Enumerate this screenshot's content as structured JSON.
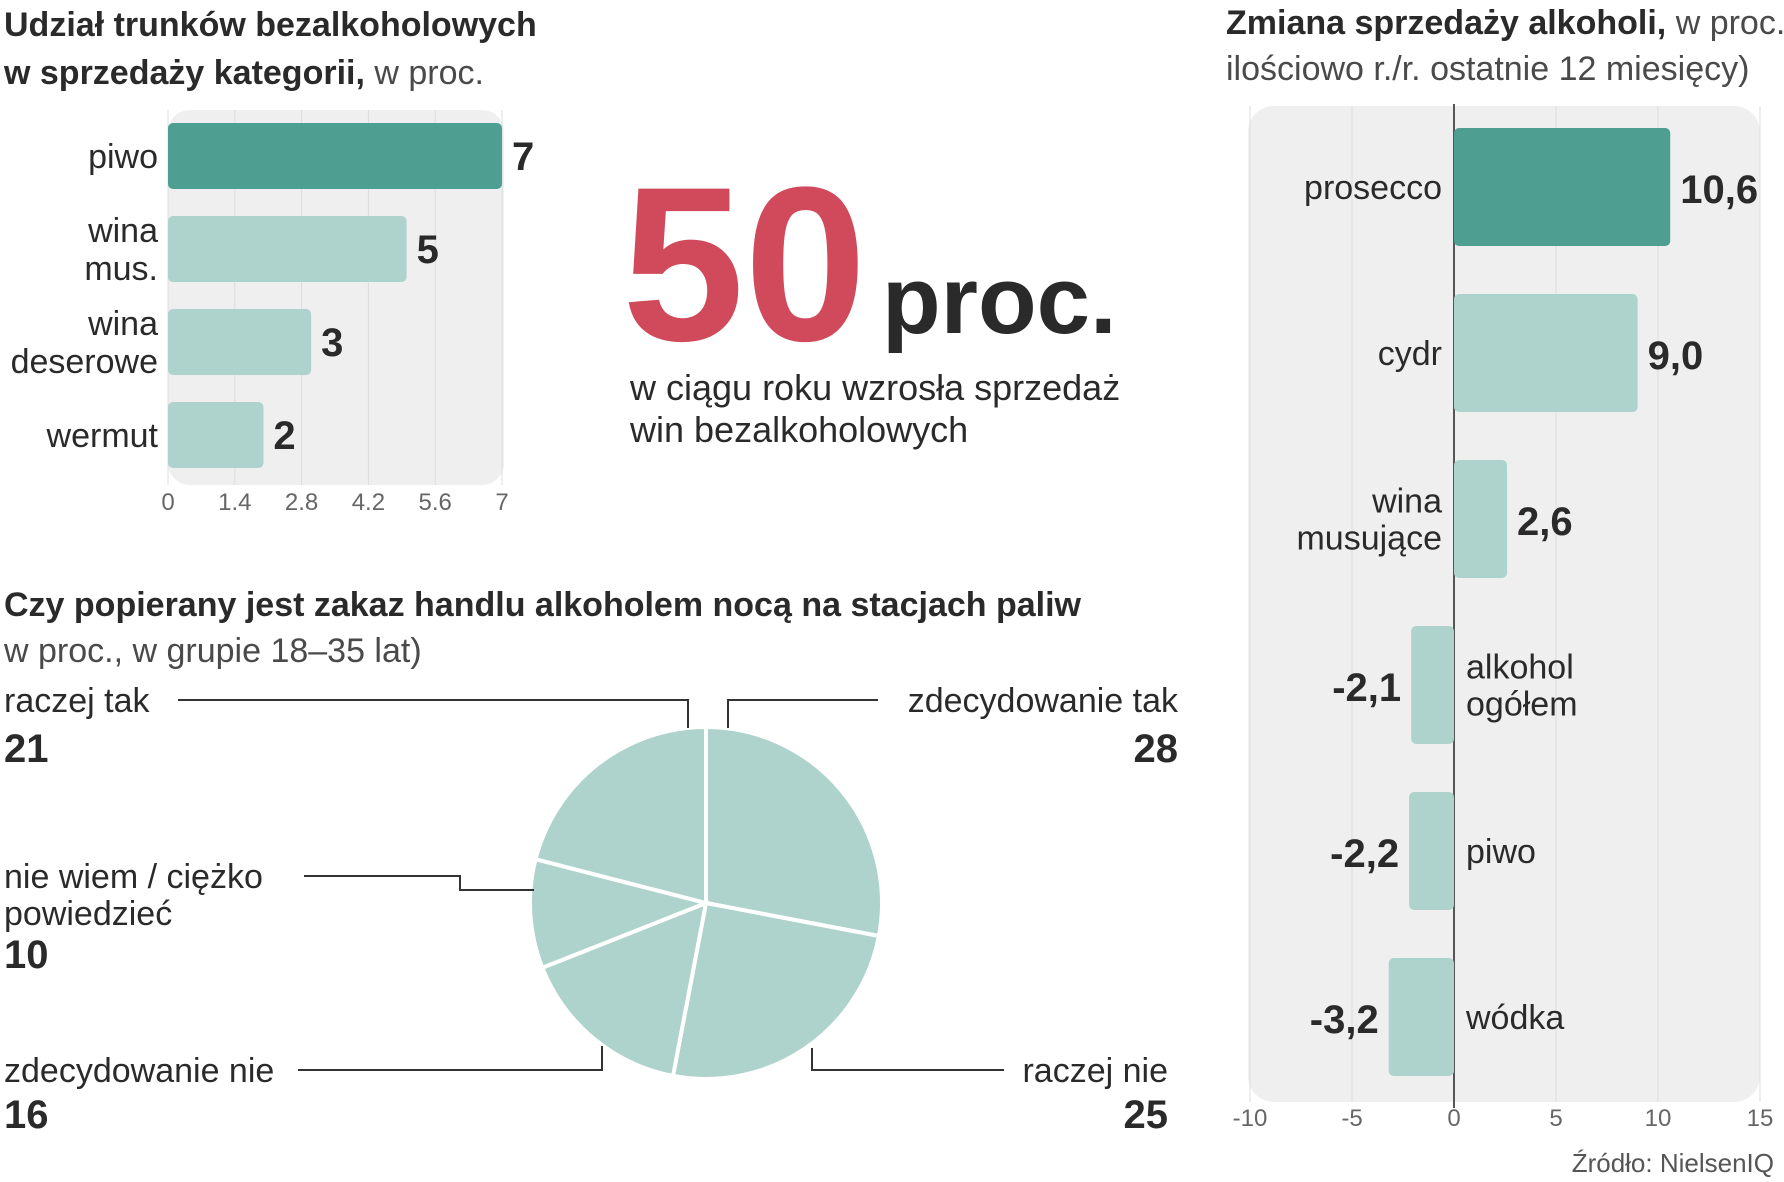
{
  "colors": {
    "accent": "#4e9e92",
    "light": "#aed2cc",
    "panel": "#efefef",
    "big": "#d04a5c",
    "text": "#2a2a2a"
  },
  "bar1": {
    "title_line1": "Udział trunków bezalkoholowych",
    "title_line2_bold": "w sprzedaży kategorii,",
    "title_line2_rest": " w proc.",
    "chart_data": {
      "type": "bar",
      "orientation": "horizontal",
      "categories": [
        "piwo",
        "wina mus.",
        "wina deserowe",
        "wermut"
      ],
      "category_lines": [
        [
          "piwo"
        ],
        [
          "wina",
          "mus."
        ],
        [
          "wina",
          "deserowe"
        ],
        [
          "wermut"
        ]
      ],
      "values": [
        7,
        5,
        3,
        2
      ],
      "value_labels": [
        "7",
        "5",
        "3",
        "2"
      ],
      "xlim": [
        0,
        7
      ],
      "ticks": [
        "0",
        "1.4",
        "2.8",
        "4.2",
        "5.6",
        "7"
      ],
      "highlight_index": 0
    }
  },
  "callout": {
    "number": "50",
    "unit": "proc.",
    "line1": "w ciągu roku wzrosła sprzedaż",
    "line2": "win bezalkoholowych"
  },
  "pie": {
    "title": "Czy popierany jest zakaz handlu alkoholem nocą na stacjach paliw",
    "subtitle": "w proc., w grupie 18–35 lat)",
    "chart_data": {
      "type": "pie",
      "slices": [
        {
          "label_lines": [
            "zdecydowanie tak"
          ],
          "value": 28,
          "value_label": "28"
        },
        {
          "label_lines": [
            "raczej nie"
          ],
          "value": 25,
          "value_label": "25"
        },
        {
          "label_lines": [
            "zdecydowanie nie"
          ],
          "value": 16,
          "value_label": "16"
        },
        {
          "label_lines": [
            "nie wiem / ciężko",
            "powiedzieć"
          ],
          "value": 10,
          "value_label": "10"
        },
        {
          "label_lines": [
            "raczej tak"
          ],
          "value": 21,
          "value_label": "21"
        }
      ]
    }
  },
  "bar2": {
    "title_bold": "Zmiana sprzedaży alkoholi,",
    "title_rest": " w proc.",
    "subtitle": "ilościowo r./r. ostatnie 12 miesięcy)",
    "chart_data": {
      "type": "bar",
      "orientation": "horizontal",
      "categories": [
        "prosecco",
        "cydr",
        "wina musujące",
        "alkohol ogółem",
        "piwo",
        "wódka"
      ],
      "category_lines": [
        [
          "prosecco"
        ],
        [
          "cydr"
        ],
        [
          "wina",
          "musujące"
        ],
        [
          "alkohol",
          "ogółem"
        ],
        [
          "piwo"
        ],
        [
          "wódka"
        ]
      ],
      "values": [
        10.6,
        9.0,
        2.6,
        -2.1,
        -2.2,
        -3.2
      ],
      "value_labels": [
        "10,6",
        "9,0",
        "2,6",
        "-2,1",
        "-2,2",
        "-3,2"
      ],
      "xlim": [
        -10,
        15
      ],
      "ticks": [
        "-10",
        "-5",
        "0",
        "5",
        "10",
        "15"
      ],
      "highlight_index": 0
    }
  },
  "source": "Źródło: NielsenIQ"
}
